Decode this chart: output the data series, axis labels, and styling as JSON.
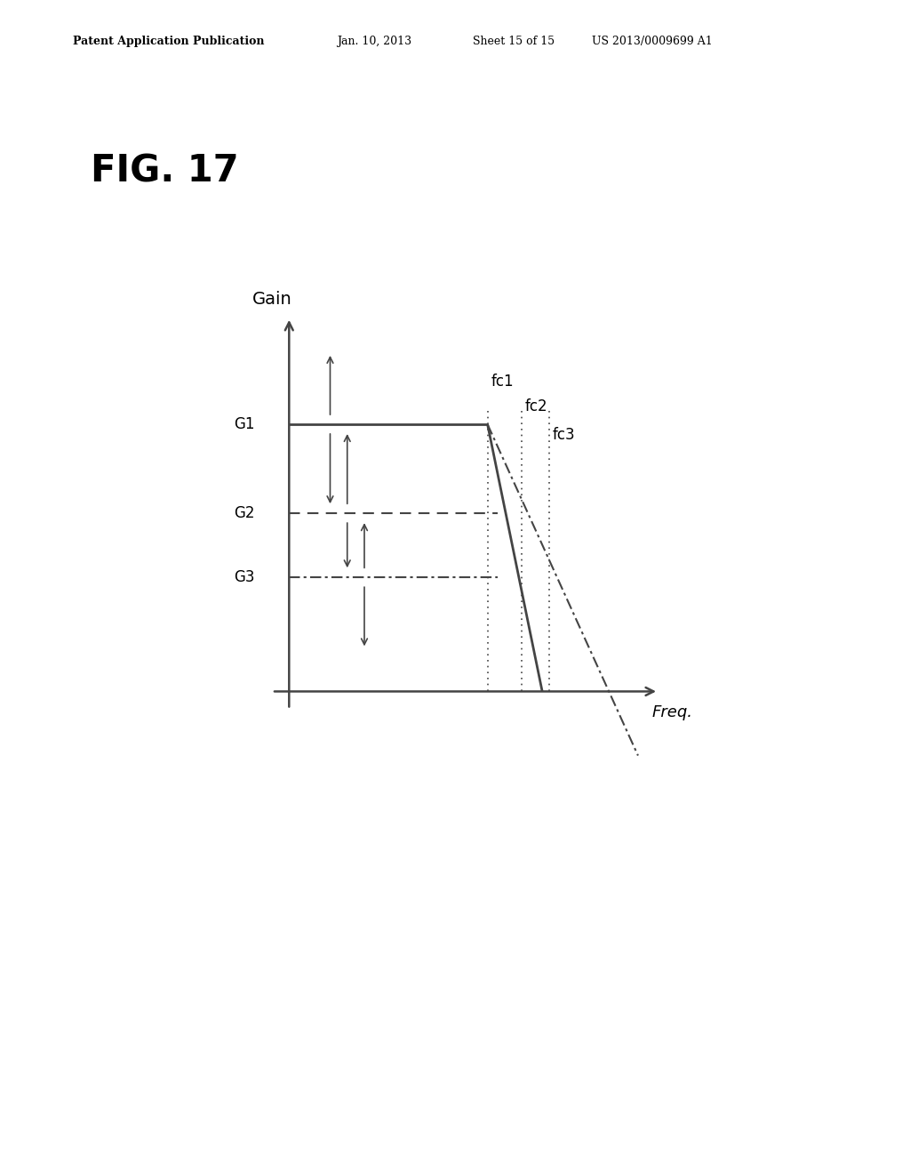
{
  "title": "FIG. 17",
  "patent_header": "Patent Application Publication",
  "patent_date": "Jan. 10, 2013",
  "patent_sheet": "Sheet 15 of 15",
  "patent_number": "US 2013/0009699 A1",
  "xlabel": "Freq.",
  "ylabel": "Gain",
  "G1": 0.75,
  "G2": 0.5,
  "G3": 0.32,
  "fc1": 0.58,
  "fc2": 0.68,
  "fc3": 0.76,
  "background_color": "#ffffff",
  "line_color": "#444444"
}
